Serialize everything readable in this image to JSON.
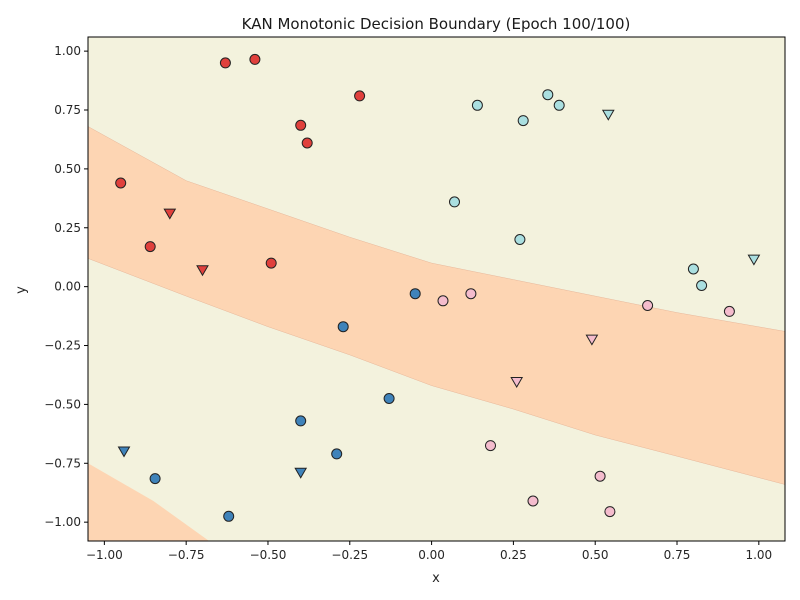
{
  "chart_data": {
    "type": "scatter",
    "title": "KAN Monotonic Decision Boundary (Epoch 100/100)",
    "xlabel": "x",
    "ylabel": "y",
    "xlim": [
      -1.05,
      1.08
    ],
    "ylim": [
      -1.08,
      1.06
    ],
    "x_ticks": [
      "−1.00",
      "−0.75",
      "−0.50",
      "−0.25",
      "0.00",
      "0.25",
      "0.50",
      "0.75",
      "1.00"
    ],
    "x_tick_values": [
      -1.0,
      -0.75,
      -0.5,
      -0.25,
      0.0,
      0.25,
      0.5,
      0.75,
      1.0
    ],
    "y_ticks": [
      "−1.00",
      "−0.75",
      "−0.50",
      "−0.25",
      "0.00",
      "0.25",
      "0.50",
      "0.75",
      "1.00"
    ],
    "y_tick_values": [
      -1.0,
      -0.75,
      -0.5,
      -0.25,
      0.0,
      0.25,
      0.5,
      0.75,
      1.0
    ],
    "grid": false,
    "legend": "none",
    "regions": {
      "background_color": "#f3f2dd",
      "band_color": "#fdd5b3",
      "middle_band": {
        "upper_boundary": [
          [
            -1.05,
            0.68
          ],
          [
            -0.75,
            0.45
          ],
          [
            -0.5,
            0.33
          ],
          [
            -0.25,
            0.21
          ],
          [
            0.0,
            0.1
          ],
          [
            0.25,
            0.03
          ],
          [
            0.5,
            -0.04
          ],
          [
            0.75,
            -0.11
          ],
          [
            1.08,
            -0.19
          ]
        ],
        "lower_boundary": [
          [
            -1.05,
            0.12
          ],
          [
            -0.75,
            -0.04
          ],
          [
            -0.5,
            -0.17
          ],
          [
            -0.25,
            -0.29
          ],
          [
            0.0,
            -0.42
          ],
          [
            0.25,
            -0.52
          ],
          [
            0.5,
            -0.63
          ],
          [
            0.75,
            -0.72
          ],
          [
            1.08,
            -0.84
          ]
        ]
      },
      "corner_band": {
        "boundary": [
          [
            -1.05,
            -0.75
          ],
          [
            -0.85,
            -0.91
          ],
          [
            -0.68,
            -1.08
          ]
        ]
      }
    },
    "series": [
      {
        "color": "#e0403c",
        "marker": "circle",
        "points": [
          [
            -0.63,
            0.95
          ],
          [
            -0.54,
            0.965
          ],
          [
            -0.4,
            0.685
          ],
          [
            -0.38,
            0.61
          ],
          [
            -0.22,
            0.81
          ],
          [
            -0.95,
            0.44
          ],
          [
            -0.86,
            0.17
          ],
          [
            -0.49,
            0.1
          ]
        ]
      },
      {
        "color": "#e0403c",
        "marker": "triangle",
        "points": [
          [
            -0.8,
            0.31
          ],
          [
            -0.7,
            0.07
          ]
        ]
      },
      {
        "color": "#3f83ba",
        "marker": "circle",
        "points": [
          [
            -0.05,
            -0.03
          ],
          [
            -0.27,
            -0.17
          ],
          [
            -0.13,
            -0.475
          ],
          [
            -0.4,
            -0.57
          ],
          [
            -0.29,
            -0.71
          ],
          [
            -0.845,
            -0.815
          ],
          [
            -0.62,
            -0.975
          ]
        ]
      },
      {
        "color": "#3f83ba",
        "marker": "triangle",
        "points": [
          [
            -0.94,
            -0.7
          ],
          [
            -0.4,
            -0.79
          ]
        ]
      },
      {
        "color": "#aadfe0",
        "marker": "circle",
        "points": [
          [
            0.14,
            0.77
          ],
          [
            0.355,
            0.815
          ],
          [
            0.39,
            0.77
          ],
          [
            0.28,
            0.705
          ],
          [
            0.07,
            0.36
          ],
          [
            0.27,
            0.2
          ],
          [
            0.8,
            0.075
          ],
          [
            0.825,
            0.005
          ]
        ]
      },
      {
        "color": "#aadfe0",
        "marker": "triangle",
        "points": [
          [
            0.54,
            0.73
          ],
          [
            0.985,
            0.115
          ]
        ]
      },
      {
        "color": "#f4bccd",
        "marker": "circle",
        "points": [
          [
            0.035,
            -0.06
          ],
          [
            0.12,
            -0.03
          ],
          [
            0.66,
            -0.08
          ],
          [
            0.91,
            -0.105
          ],
          [
            0.18,
            -0.675
          ],
          [
            0.515,
            -0.805
          ],
          [
            0.31,
            -0.91
          ],
          [
            0.545,
            -0.955
          ]
        ]
      },
      {
        "color": "#f4bccd",
        "marker": "triangle",
        "points": [
          [
            0.49,
            -0.225
          ],
          [
            0.26,
            -0.405
          ]
        ]
      }
    ]
  }
}
